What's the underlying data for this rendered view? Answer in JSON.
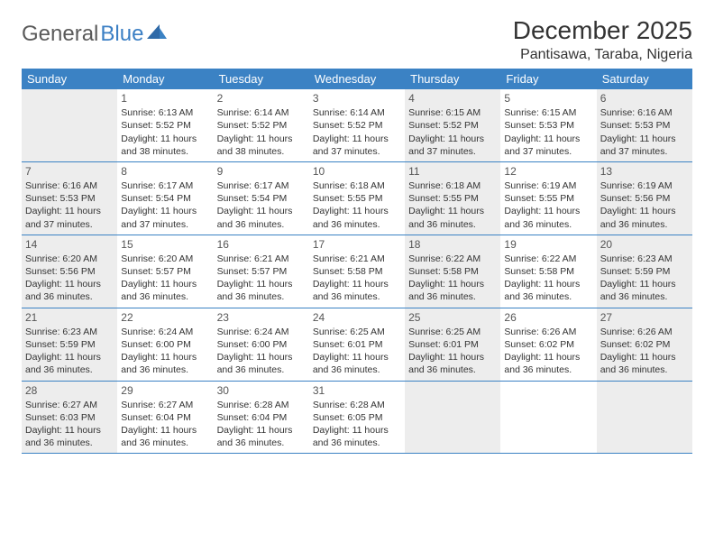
{
  "logo": {
    "part1": "General",
    "part2": "Blue"
  },
  "title": "December 2025",
  "location": "Pantisawa, Taraba, Nigeria",
  "header_bg": "#3b82c4",
  "header_fg": "#ffffff",
  "row_border": "#3b82c4",
  "shade_bg": "#ededed",
  "text_color": "#333333",
  "daynum_color": "#555555",
  "day_labels": [
    "Sunday",
    "Monday",
    "Tuesday",
    "Wednesday",
    "Thursday",
    "Friday",
    "Saturday"
  ],
  "weeks": [
    [
      {
        "n": "",
        "sunrise": "",
        "sunset": "",
        "daylight": "",
        "shaded": true
      },
      {
        "n": "1",
        "sunrise": "Sunrise: 6:13 AM",
        "sunset": "Sunset: 5:52 PM",
        "daylight": "Daylight: 11 hours and 38 minutes.",
        "shaded": false
      },
      {
        "n": "2",
        "sunrise": "Sunrise: 6:14 AM",
        "sunset": "Sunset: 5:52 PM",
        "daylight": "Daylight: 11 hours and 38 minutes.",
        "shaded": false
      },
      {
        "n": "3",
        "sunrise": "Sunrise: 6:14 AM",
        "sunset": "Sunset: 5:52 PM",
        "daylight": "Daylight: 11 hours and 37 minutes.",
        "shaded": false
      },
      {
        "n": "4",
        "sunrise": "Sunrise: 6:15 AM",
        "sunset": "Sunset: 5:52 PM",
        "daylight": "Daylight: 11 hours and 37 minutes.",
        "shaded": true
      },
      {
        "n": "5",
        "sunrise": "Sunrise: 6:15 AM",
        "sunset": "Sunset: 5:53 PM",
        "daylight": "Daylight: 11 hours and 37 minutes.",
        "shaded": false
      },
      {
        "n": "6",
        "sunrise": "Sunrise: 6:16 AM",
        "sunset": "Sunset: 5:53 PM",
        "daylight": "Daylight: 11 hours and 37 minutes.",
        "shaded": true
      }
    ],
    [
      {
        "n": "7",
        "sunrise": "Sunrise: 6:16 AM",
        "sunset": "Sunset: 5:53 PM",
        "daylight": "Daylight: 11 hours and 37 minutes.",
        "shaded": true
      },
      {
        "n": "8",
        "sunrise": "Sunrise: 6:17 AM",
        "sunset": "Sunset: 5:54 PM",
        "daylight": "Daylight: 11 hours and 37 minutes.",
        "shaded": false
      },
      {
        "n": "9",
        "sunrise": "Sunrise: 6:17 AM",
        "sunset": "Sunset: 5:54 PM",
        "daylight": "Daylight: 11 hours and 36 minutes.",
        "shaded": false
      },
      {
        "n": "10",
        "sunrise": "Sunrise: 6:18 AM",
        "sunset": "Sunset: 5:55 PM",
        "daylight": "Daylight: 11 hours and 36 minutes.",
        "shaded": false
      },
      {
        "n": "11",
        "sunrise": "Sunrise: 6:18 AM",
        "sunset": "Sunset: 5:55 PM",
        "daylight": "Daylight: 11 hours and 36 minutes.",
        "shaded": true
      },
      {
        "n": "12",
        "sunrise": "Sunrise: 6:19 AM",
        "sunset": "Sunset: 5:55 PM",
        "daylight": "Daylight: 11 hours and 36 minutes.",
        "shaded": false
      },
      {
        "n": "13",
        "sunrise": "Sunrise: 6:19 AM",
        "sunset": "Sunset: 5:56 PM",
        "daylight": "Daylight: 11 hours and 36 minutes.",
        "shaded": true
      }
    ],
    [
      {
        "n": "14",
        "sunrise": "Sunrise: 6:20 AM",
        "sunset": "Sunset: 5:56 PM",
        "daylight": "Daylight: 11 hours and 36 minutes.",
        "shaded": true
      },
      {
        "n": "15",
        "sunrise": "Sunrise: 6:20 AM",
        "sunset": "Sunset: 5:57 PM",
        "daylight": "Daylight: 11 hours and 36 minutes.",
        "shaded": false
      },
      {
        "n": "16",
        "sunrise": "Sunrise: 6:21 AM",
        "sunset": "Sunset: 5:57 PM",
        "daylight": "Daylight: 11 hours and 36 minutes.",
        "shaded": false
      },
      {
        "n": "17",
        "sunrise": "Sunrise: 6:21 AM",
        "sunset": "Sunset: 5:58 PM",
        "daylight": "Daylight: 11 hours and 36 minutes.",
        "shaded": false
      },
      {
        "n": "18",
        "sunrise": "Sunrise: 6:22 AM",
        "sunset": "Sunset: 5:58 PM",
        "daylight": "Daylight: 11 hours and 36 minutes.",
        "shaded": true
      },
      {
        "n": "19",
        "sunrise": "Sunrise: 6:22 AM",
        "sunset": "Sunset: 5:58 PM",
        "daylight": "Daylight: 11 hours and 36 minutes.",
        "shaded": false
      },
      {
        "n": "20",
        "sunrise": "Sunrise: 6:23 AM",
        "sunset": "Sunset: 5:59 PM",
        "daylight": "Daylight: 11 hours and 36 minutes.",
        "shaded": true
      }
    ],
    [
      {
        "n": "21",
        "sunrise": "Sunrise: 6:23 AM",
        "sunset": "Sunset: 5:59 PM",
        "daylight": "Daylight: 11 hours and 36 minutes.",
        "shaded": true
      },
      {
        "n": "22",
        "sunrise": "Sunrise: 6:24 AM",
        "sunset": "Sunset: 6:00 PM",
        "daylight": "Daylight: 11 hours and 36 minutes.",
        "shaded": false
      },
      {
        "n": "23",
        "sunrise": "Sunrise: 6:24 AM",
        "sunset": "Sunset: 6:00 PM",
        "daylight": "Daylight: 11 hours and 36 minutes.",
        "shaded": false
      },
      {
        "n": "24",
        "sunrise": "Sunrise: 6:25 AM",
        "sunset": "Sunset: 6:01 PM",
        "daylight": "Daylight: 11 hours and 36 minutes.",
        "shaded": false
      },
      {
        "n": "25",
        "sunrise": "Sunrise: 6:25 AM",
        "sunset": "Sunset: 6:01 PM",
        "daylight": "Daylight: 11 hours and 36 minutes.",
        "shaded": true
      },
      {
        "n": "26",
        "sunrise": "Sunrise: 6:26 AM",
        "sunset": "Sunset: 6:02 PM",
        "daylight": "Daylight: 11 hours and 36 minutes.",
        "shaded": false
      },
      {
        "n": "27",
        "sunrise": "Sunrise: 6:26 AM",
        "sunset": "Sunset: 6:02 PM",
        "daylight": "Daylight: 11 hours and 36 minutes.",
        "shaded": true
      }
    ],
    [
      {
        "n": "28",
        "sunrise": "Sunrise: 6:27 AM",
        "sunset": "Sunset: 6:03 PM",
        "daylight": "Daylight: 11 hours and 36 minutes.",
        "shaded": true
      },
      {
        "n": "29",
        "sunrise": "Sunrise: 6:27 AM",
        "sunset": "Sunset: 6:04 PM",
        "daylight": "Daylight: 11 hours and 36 minutes.",
        "shaded": false
      },
      {
        "n": "30",
        "sunrise": "Sunrise: 6:28 AM",
        "sunset": "Sunset: 6:04 PM",
        "daylight": "Daylight: 11 hours and 36 minutes.",
        "shaded": false
      },
      {
        "n": "31",
        "sunrise": "Sunrise: 6:28 AM",
        "sunset": "Sunset: 6:05 PM",
        "daylight": "Daylight: 11 hours and 36 minutes.",
        "shaded": false
      },
      {
        "n": "",
        "sunrise": "",
        "sunset": "",
        "daylight": "",
        "shaded": true
      },
      {
        "n": "",
        "sunrise": "",
        "sunset": "",
        "daylight": "",
        "shaded": false
      },
      {
        "n": "",
        "sunrise": "",
        "sunset": "",
        "daylight": "",
        "shaded": true
      }
    ]
  ]
}
